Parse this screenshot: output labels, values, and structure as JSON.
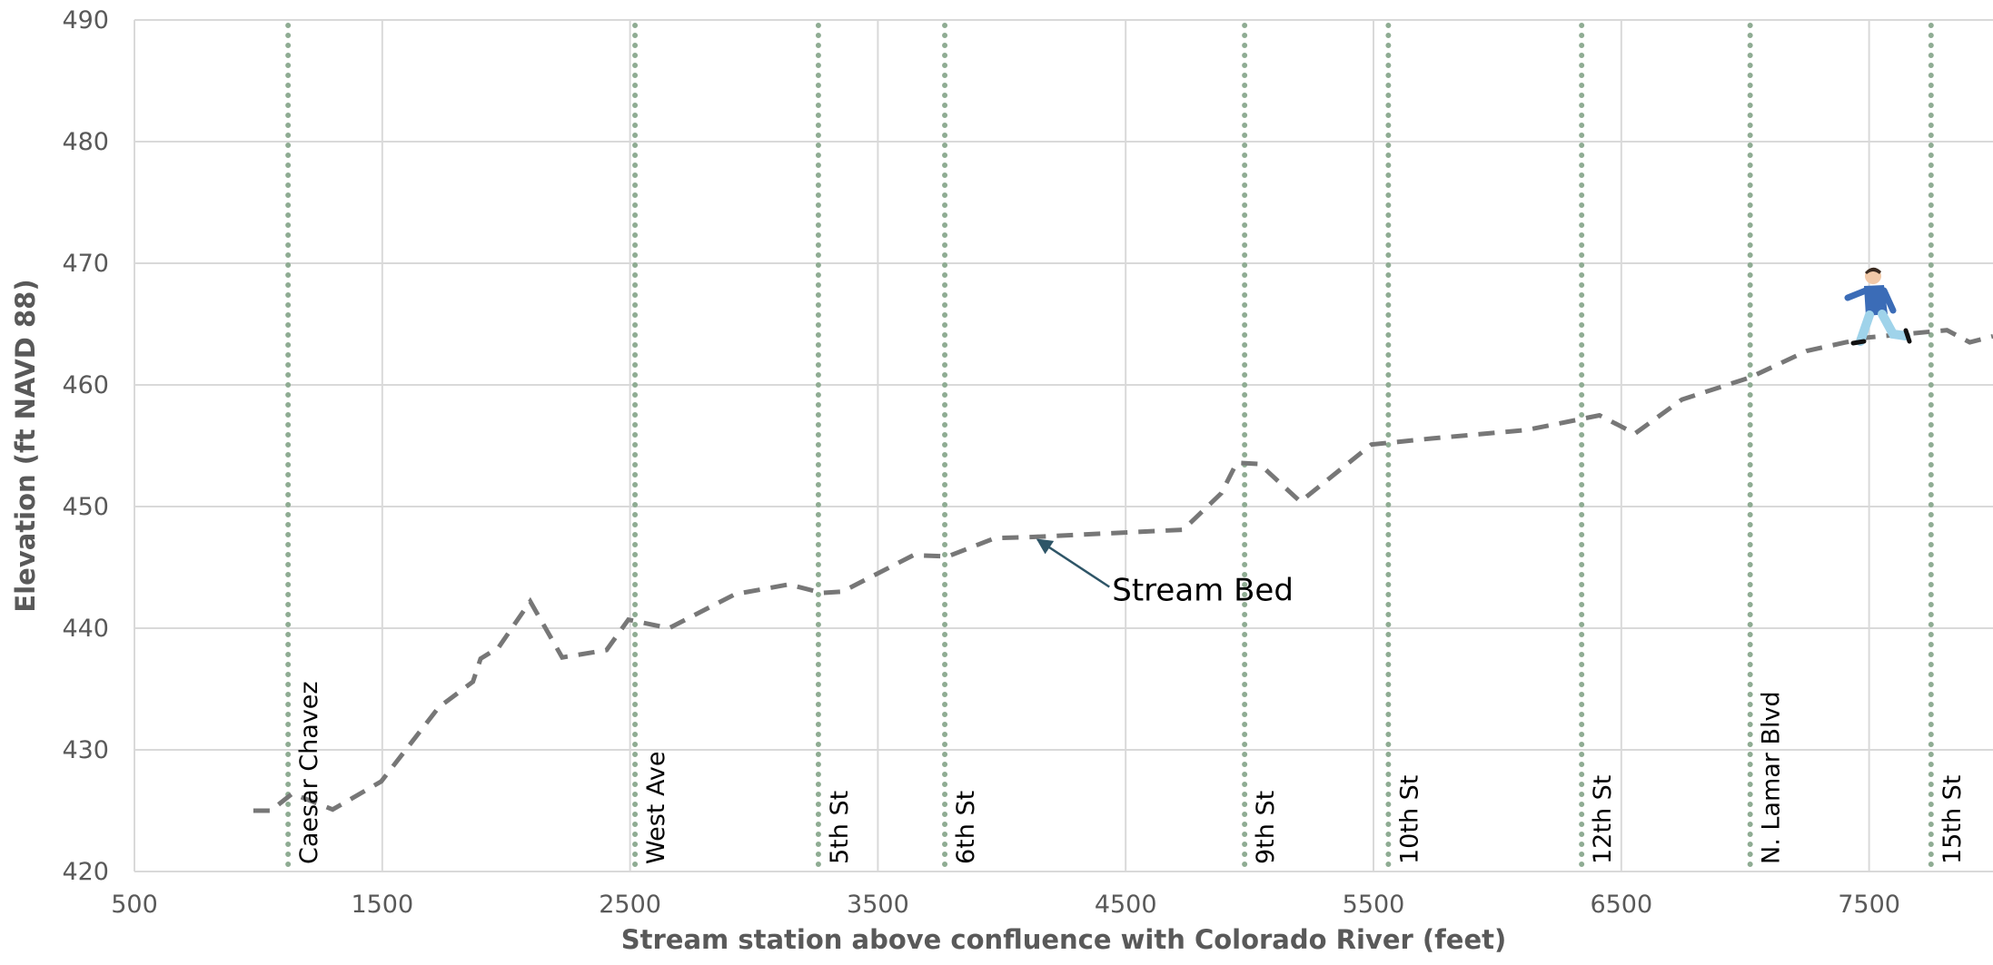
{
  "chart_data": {
    "type": "line",
    "xlabel": "Stream station above confluence with Colorado River (feet)",
    "ylabel": "Elevation (ft NAVD 88)",
    "xlim": [
      500,
      8000
    ],
    "xticks": [
      500,
      1500,
      2500,
      3500,
      4500,
      5500,
      6500,
      7500
    ],
    "ylim": [
      420,
      490
    ],
    "yticks": [
      420,
      430,
      440,
      450,
      460,
      470,
      480,
      490
    ],
    "grid": true,
    "x": [
      980,
      1050,
      1137,
      1300,
      1496,
      1728,
      1866,
      1897,
      1969,
      2097,
      2226,
      2405,
      2493,
      2657,
      2924,
      3140,
      3274,
      3356,
      3643,
      3782,
      3972,
      4126,
      4732,
      4886,
      4948,
      5040,
      5205,
      5492,
      5734,
      6119,
      6412,
      6555,
      6745,
      7018,
      7249,
      7496,
      7814,
      7906,
      8000
    ],
    "series": [
      {
        "color": "#777777",
        "values": [
          425.0,
          425.0,
          426.4,
          425.1,
          427.4,
          433.5,
          435.6,
          437.5,
          438.4,
          442.2,
          437.6,
          438.2,
          440.7,
          440.0,
          442.8,
          443.6,
          442.9,
          443.0,
          446.0,
          445.9,
          447.4,
          447.5,
          448.1,
          451.1,
          453.6,
          453.5,
          450.4,
          455.1,
          455.6,
          456.3,
          457.5,
          456.0,
          458.8,
          460.6,
          462.8,
          463.9,
          464.5,
          463.5,
          464.0
        ]
      }
    ],
    "markers": {
      "color": "#8fac93",
      "items": [
        {
          "label": "Caesar Chavez",
          "x": 1120
        },
        {
          "label": "West Ave",
          "x": 2520
        },
        {
          "label": "5th St",
          "x": 3260
        },
        {
          "label": "6th St",
          "x": 3770
        },
        {
          "label": "9th St",
          "x": 4980
        },
        {
          "label": "10th St",
          "x": 5560
        },
        {
          "label": "12th St",
          "x": 6340
        },
        {
          "label": "N. Lamar Blvd",
          "x": 7020
        },
        {
          "label": "15th St",
          "x": 7750
        }
      ]
    },
    "annotations": [
      {
        "text": "Stream Bed",
        "x": 4130,
        "y": 447.5,
        "color": "#2e5567"
      }
    ]
  }
}
